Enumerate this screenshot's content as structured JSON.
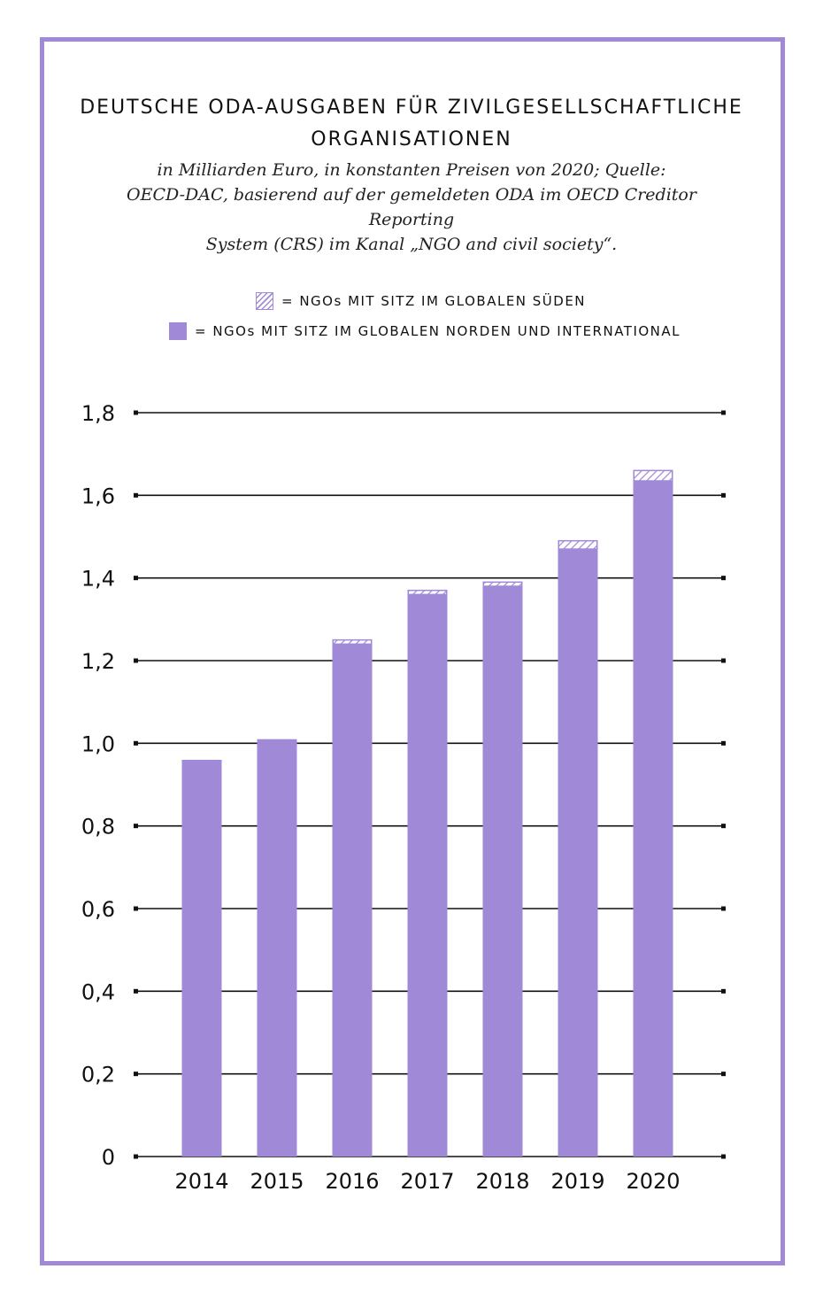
{
  "title_lines": [
    "DEUTSCHE ODA-AUSGABEN FÜR ZIVILGESELLSCHAFTLICHE",
    "ORGANISATIONEN"
  ],
  "subtitle_lines": [
    "in Milliarden Euro, in konstanten Preisen von 2020; Quelle:",
    "OECD-DAC, basierend auf der gemeldeten ODA im OECD Creditor Reporting",
    "System (CRS) im Kanal „NGO and civil society“."
  ],
  "legend": {
    "south_label": "= NGOs MIT SITZ IM GLOBALEN SÜDEN",
    "north_label": "= NGOs MIT SITZ IM GLOBALEN NORDEN UND INTERNATIONAL"
  },
  "colors": {
    "frame": "#a08ad8",
    "bar": "#a08ad8",
    "hatch": "#a08ad8",
    "grid": "#111111"
  },
  "chart_data": {
    "type": "bar",
    "stacked": true,
    "categories": [
      "2014",
      "2015",
      "2016",
      "2017",
      "2018",
      "2019",
      "2020"
    ],
    "series": [
      {
        "name": "NGOs MIT SITZ IM GLOBALEN NORDEN UND INTERNATIONAL",
        "values": [
          0.96,
          1.01,
          1.24,
          1.36,
          1.38,
          1.47,
          1.635
        ],
        "style": "solid"
      },
      {
        "name": "NGOs MIT SITZ IM GLOBALEN SÜDEN",
        "values": [
          0.0,
          0.0,
          0.01,
          0.01,
          0.01,
          0.02,
          0.025
        ],
        "style": "hatched"
      }
    ],
    "y_ticks": [
      "0",
      "0,2",
      "0,4",
      "0,6",
      "0,8",
      "1,0",
      "1,2",
      "1,4",
      "1,6",
      "1,8"
    ],
    "ylim": [
      0,
      1.8
    ],
    "grid": true,
    "legend_position": "top"
  }
}
